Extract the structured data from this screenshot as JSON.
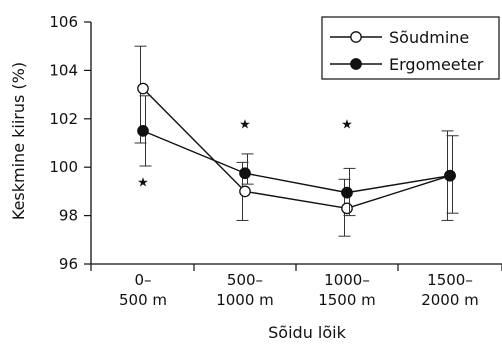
{
  "chart_data": {
    "type": "line",
    "xlabel": "Sõidu lõik",
    "ylabel": "Keskmine kiirus (%)",
    "ylim": [
      96,
      106
    ],
    "yticks": [
      "96",
      "98",
      "100",
      "102",
      "104",
      "106"
    ],
    "categories": [
      [
        "0–",
        "500 m"
      ],
      [
        "500–",
        "1000 m"
      ],
      [
        "1000–",
        "1500 m"
      ],
      [
        "1500–",
        "2000 m"
      ]
    ],
    "legend_position": "top-right",
    "series": [
      {
        "name": "Sõudmine",
        "marker": "open-circle",
        "values": [
          103.25,
          99.0,
          98.3,
          99.65
        ],
        "err_low": [
          101.0,
          97.8,
          97.15,
          97.8
        ],
        "err_high": [
          105.0,
          100.2,
          99.5,
          101.5
        ]
      },
      {
        "name": "Ergomeeter",
        "marker": "filled-circle",
        "values": [
          101.5,
          99.75,
          98.95,
          99.65
        ],
        "err_low": [
          100.05,
          99.3,
          98.0,
          98.1
        ],
        "err_high": [
          102.95,
          100.55,
          99.95,
          101.3
        ]
      }
    ],
    "significance_marks": [
      {
        "category_index": 0,
        "symbol": "★",
        "y": 99.4
      },
      {
        "category_index": 1,
        "symbol": "★",
        "y": 101.8
      },
      {
        "category_index": 2,
        "symbol": "★",
        "y": 101.8
      }
    ]
  }
}
